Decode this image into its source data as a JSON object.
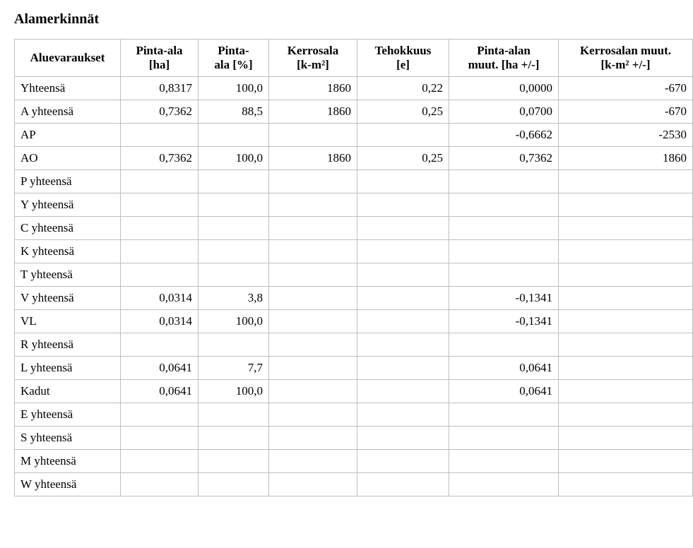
{
  "title": "Alamerkinnät",
  "headers": {
    "c0": "Aluevaraukset",
    "c1a": "Pinta-ala",
    "c1b": "[ha]",
    "c2a": "Pinta-",
    "c2b": "ala [%]",
    "c3a": "Kerrosala",
    "c3b": "[k-m²]",
    "c4a": "Tehokkuus",
    "c4b": "[e]",
    "c5a": "Pinta-alan",
    "c5b": "muut. [ha +/-]",
    "c6a": "Kerrosalan muut.",
    "c6b": "[k-m² +/-]"
  },
  "rows": [
    {
      "label": "Yhteensä",
      "c1": "0,8317",
      "c2": "100,0",
      "c3": "1860",
      "c4": "0,22",
      "c5": "0,0000",
      "c6": "-670"
    },
    {
      "label": "A yhteensä",
      "c1": "0,7362",
      "c2": "88,5",
      "c3": "1860",
      "c4": "0,25",
      "c5": "0,0700",
      "c6": "-670"
    },
    {
      "label": "AP",
      "c1": "",
      "c2": "",
      "c3": "",
      "c4": "",
      "c5": "-0,6662",
      "c6": "-2530"
    },
    {
      "label": "AO",
      "c1": "0,7362",
      "c2": "100,0",
      "c3": "1860",
      "c4": "0,25",
      "c5": "0,7362",
      "c6": "1860"
    },
    {
      "label": "P yhteensä",
      "c1": "",
      "c2": "",
      "c3": "",
      "c4": "",
      "c5": "",
      "c6": ""
    },
    {
      "label": "Y yhteensä",
      "c1": "",
      "c2": "",
      "c3": "",
      "c4": "",
      "c5": "",
      "c6": ""
    },
    {
      "label": "C yhteensä",
      "c1": "",
      "c2": "",
      "c3": "",
      "c4": "",
      "c5": "",
      "c6": ""
    },
    {
      "label": "K yhteensä",
      "c1": "",
      "c2": "",
      "c3": "",
      "c4": "",
      "c5": "",
      "c6": ""
    },
    {
      "label": "T yhteensä",
      "c1": "",
      "c2": "",
      "c3": "",
      "c4": "",
      "c5": "",
      "c6": ""
    },
    {
      "label": "V yhteensä",
      "c1": "0,0314",
      "c2": "3,8",
      "c3": "",
      "c4": "",
      "c5": "-0,1341",
      "c6": ""
    },
    {
      "label": "VL",
      "c1": "0,0314",
      "c2": "100,0",
      "c3": "",
      "c4": "",
      "c5": "-0,1341",
      "c6": ""
    },
    {
      "label": "R yhteensä",
      "c1": "",
      "c2": "",
      "c3": "",
      "c4": "",
      "c5": "",
      "c6": ""
    },
    {
      "label": "L yhteensä",
      "c1": "0,0641",
      "c2": "7,7",
      "c3": "",
      "c4": "",
      "c5": "0,0641",
      "c6": ""
    },
    {
      "label": "Kadut",
      "c1": "0,0641",
      "c2": "100,0",
      "c3": "",
      "c4": "",
      "c5": "0,0641",
      "c6": ""
    },
    {
      "label": "E yhteensä",
      "c1": "",
      "c2": "",
      "c3": "",
      "c4": "",
      "c5": "",
      "c6": ""
    },
    {
      "label": "S yhteensä",
      "c1": "",
      "c2": "",
      "c3": "",
      "c4": "",
      "c5": "",
      "c6": ""
    },
    {
      "label": "M yhteensä",
      "c1": "",
      "c2": "",
      "c3": "",
      "c4": "",
      "c5": "",
      "c6": ""
    },
    {
      "label": "W yhteensä",
      "c1": "",
      "c2": "",
      "c3": "",
      "c4": "",
      "c5": "",
      "c6": ""
    }
  ]
}
